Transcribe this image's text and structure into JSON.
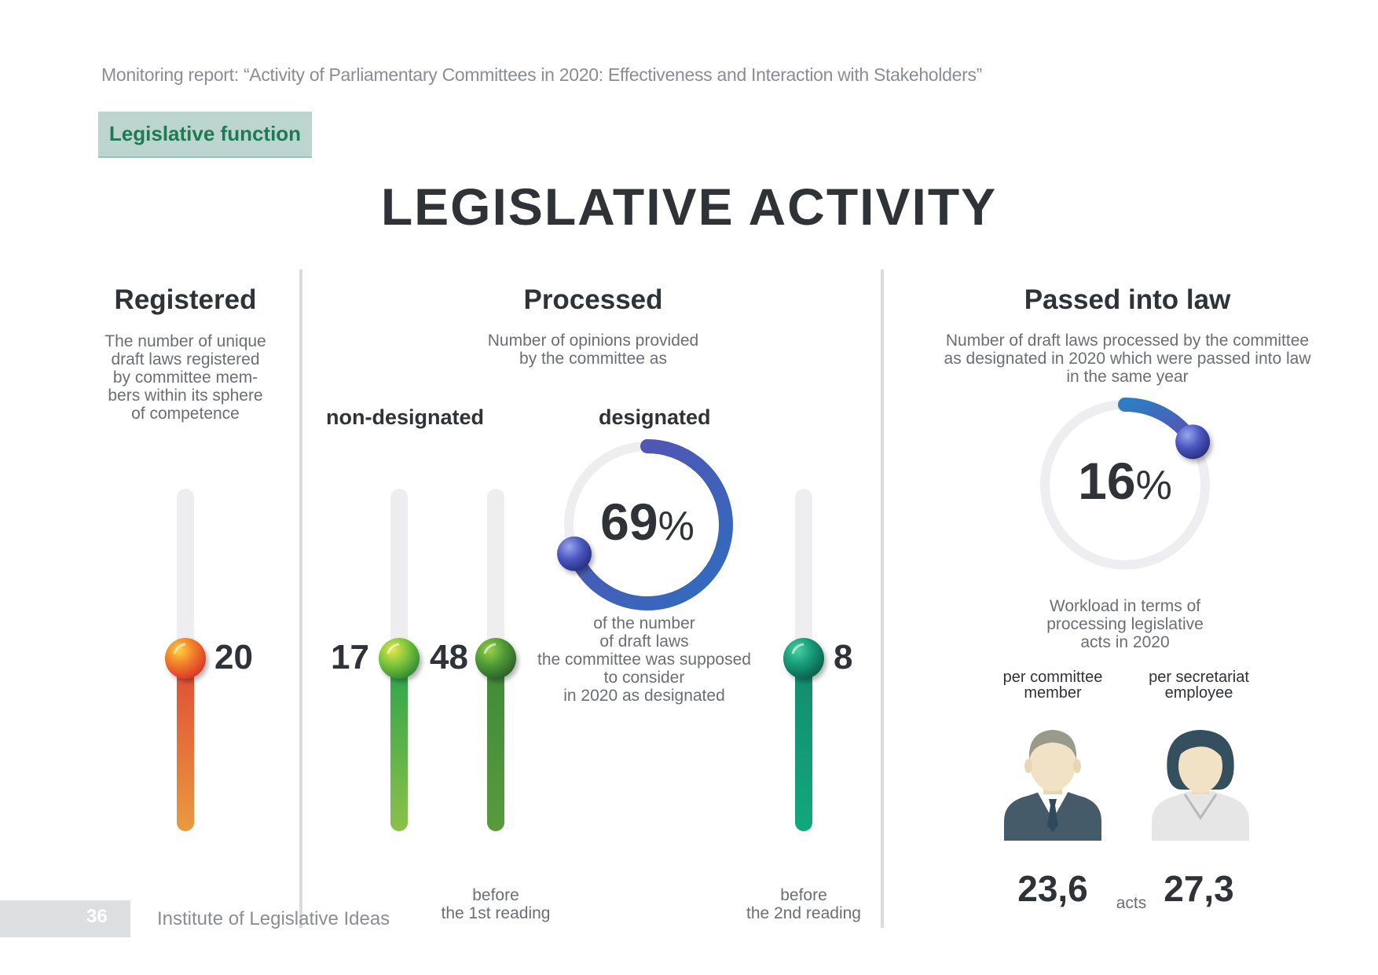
{
  "header": {
    "report_title": "Monitoring report: “Activity of Parliamentary Committees in 2020: Effectiveness and Interaction with Stakeholders”",
    "section_tag": "Legislative function"
  },
  "main_title": "LEGISLATIVE ACTIVITY",
  "registered": {
    "title": "Registered",
    "description": [
      "The number of unique",
      "draft laws registered",
      "by committee mem-",
      "bers within its sphere",
      "of competence"
    ],
    "value": "20"
  },
  "processed": {
    "title": "Processed",
    "description": [
      "Number of opinions provided",
      "by the committee as"
    ],
    "non_designated_label": "non-designated",
    "designated_label": "designated",
    "non_designated_value": "17",
    "first_reading_value": "48",
    "second_reading_value": "8",
    "designated_percent": "69",
    "percent_sign": "%",
    "designated_percent_fraction": 0.69,
    "designated_caption": [
      "of the number",
      "of draft laws",
      "the committee was supposed",
      "to consider",
      "in 2020 as designated"
    ],
    "first_reading_caption": [
      "before",
      "the 1st reading"
    ],
    "second_reading_caption": [
      "before",
      "the 2nd reading"
    ]
  },
  "passed": {
    "title": "Passed into law",
    "description": [
      "Number of draft laws processed by the committee",
      "as designated in 2020 which were passed into law",
      "in the same year"
    ],
    "percent": "16",
    "percent_sign": "%",
    "percent_fraction": 0.16,
    "workload_caption": [
      "Workload in terms of",
      "processing legislative",
      "acts in 2020"
    ],
    "per_member_label": [
      "per committee",
      "member"
    ],
    "per_employee_label": [
      "per secretariat",
      "employee"
    ],
    "per_member_value": "23,6",
    "per_employee_value": "27,3",
    "unit": "acts"
  },
  "colors": {
    "registered": "#e0543a",
    "non_designated": "#3aac4a",
    "first_reading": "#4e8f3c",
    "second_reading": "#14a07a",
    "donut": "#4b57b3",
    "tag_bg": "#bcd6cf"
  },
  "icons": [
    "male-person-icon",
    "female-person-icon"
  ],
  "footer": {
    "page_number": "36",
    "publisher": "Institute of Legislative Ideas"
  }
}
